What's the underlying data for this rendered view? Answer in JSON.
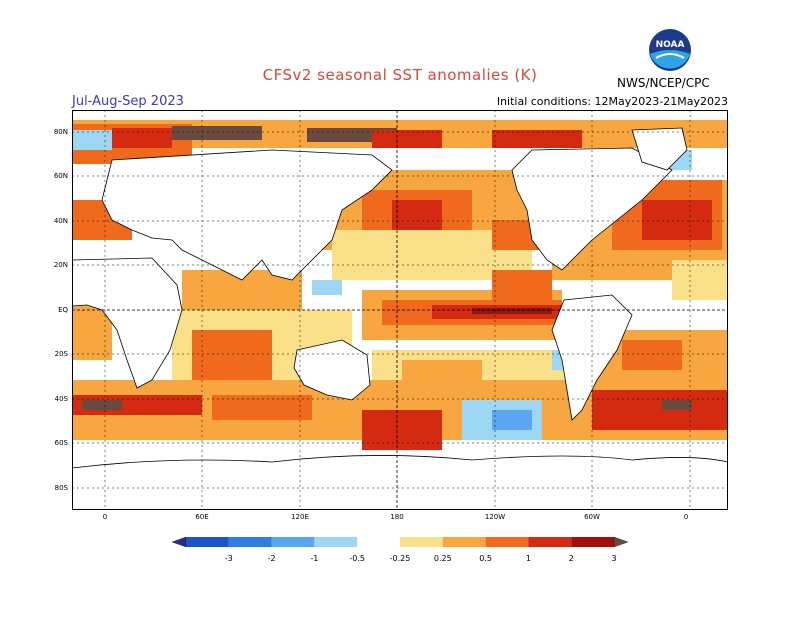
{
  "title": "CFSv2 seasonal SST anomalies (K)",
  "season": "Jul-Aug-Sep 2023",
  "initial_conditions": "Initial conditions: 12May2023-21May2023",
  "org": "NWS/NCEP/CPC",
  "logo": {
    "icon": "noaa-logo",
    "text": "NOAA"
  },
  "lat_labels": [
    "80N",
    "60N",
    "40N",
    "20N",
    "EQ",
    "20S",
    "40S",
    "60S",
    "80S"
  ],
  "lon_labels": [
    "0",
    "60E",
    "120E",
    "180",
    "120W",
    "60W",
    "0"
  ],
  "colorbar": {
    "labels": [
      "-3",
      "-2",
      "-1",
      "-0.5",
      "-0.25",
      "0.25",
      "0.5",
      "1",
      "2",
      "3"
    ],
    "colors": [
      "#2a2a8f",
      "#1f53c7",
      "#2e7de0",
      "#5aa6f0",
      "#9dd7f4",
      "#ffffff",
      "#fbe08a",
      "#f7a640",
      "#f06a1e",
      "#d42a12",
      "#a00f0a",
      "#6a4a3e"
    ]
  },
  "colors": {
    "land": "#ffffff",
    "warm_light": "#fbe08a",
    "warm_mid": "#f7a640",
    "warm_strong": "#f06a1e",
    "warm_extreme": "#d42a12",
    "warm_max": "#6a4a3e",
    "cool_light": "#9dd7f4",
    "cool_mid": "#5aa6f0"
  }
}
